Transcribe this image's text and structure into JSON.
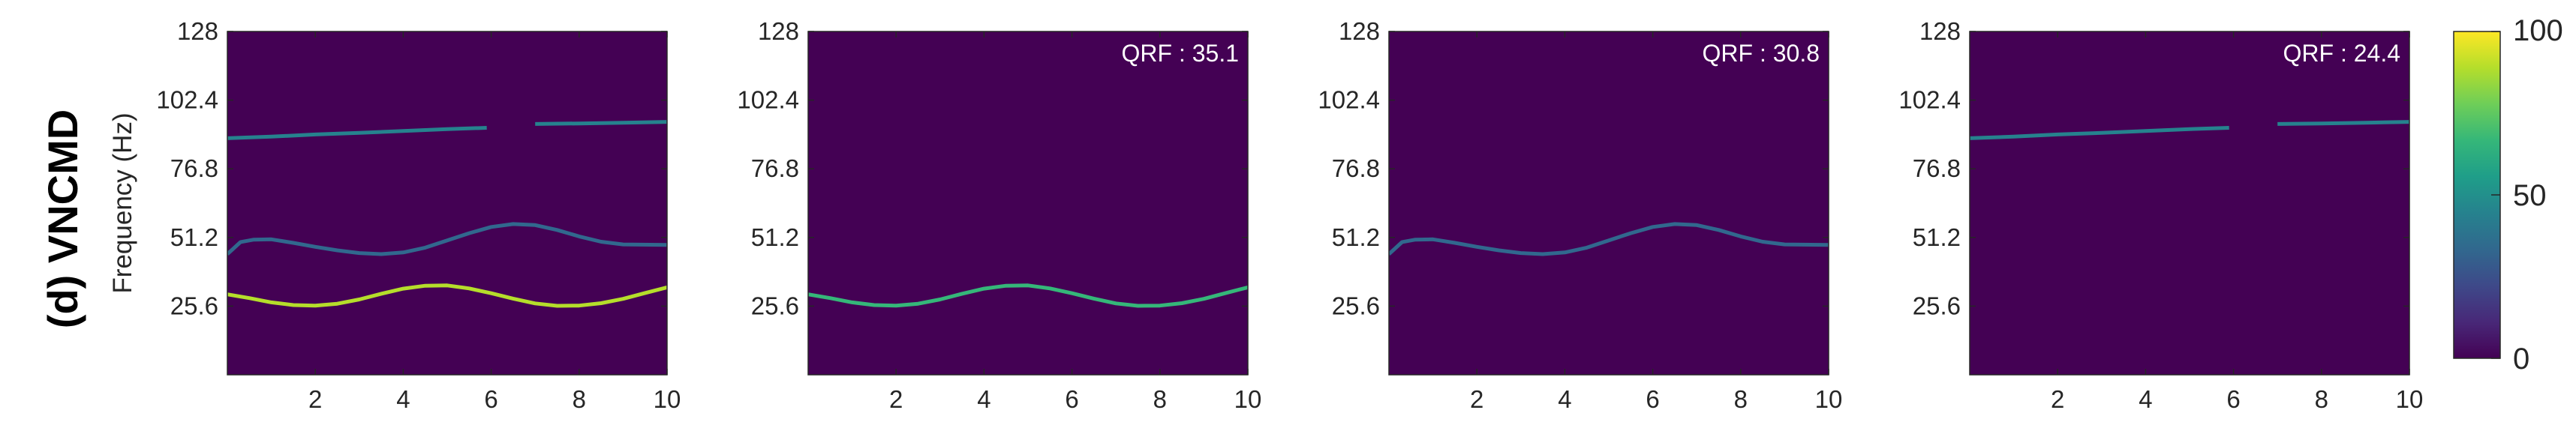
{
  "figure": {
    "row_label": "(d) VNCMD",
    "ylabel": "Frequency (Hz)"
  },
  "colorbar": {
    "range": [
      0,
      100
    ],
    "ticks": [
      "100",
      "50",
      "0"
    ],
    "colormap": [
      "#440154",
      "#482878",
      "#3e4989",
      "#31688e",
      "#26828e",
      "#1f9e89",
      "#35b779",
      "#6ece58",
      "#b5de2b",
      "#fde725"
    ]
  },
  "chart_data": [
    {
      "type": "heatmap",
      "title": "",
      "annotation": "",
      "xlabel": "",
      "ylabel": "Frequency (Hz)",
      "xlim": [
        0,
        10
      ],
      "ylim": [
        0,
        128
      ],
      "xticks": [
        "2",
        "4",
        "6",
        "8",
        "10"
      ],
      "yticks": [
        "25.6",
        "51.2",
        "76.8",
        "102.4",
        "128"
      ],
      "background": "#440154",
      "series": [
        {
          "points": [
            [
              0,
              88.2
            ],
            [
              1,
              88.8
            ],
            [
              2,
              89.6
            ],
            [
              3,
              90.2
            ],
            [
              4,
              90.9
            ],
            [
              5,
              91.6
            ],
            [
              5.9,
              92.1
            ]
          ],
          "color": "#26828e"
        },
        {
          "points": [
            [
              7.0,
              93.5
            ],
            [
              8,
              93.7
            ],
            [
              9,
              94.0
            ],
            [
              10,
              94.3
            ]
          ],
          "color": "#26828e"
        },
        {
          "points": [
            [
              0,
              45
            ],
            [
              0.3,
              49.5
            ],
            [
              0.6,
              50.4
            ],
            [
              1,
              50.5
            ],
            [
              1.5,
              49.2
            ],
            [
              2,
              47.7
            ],
            [
              2.5,
              46.4
            ],
            [
              3,
              45.4
            ],
            [
              3.5,
              45.0
            ],
            [
              4,
              45.6
            ],
            [
              4.5,
              47.4
            ],
            [
              5,
              50.1
            ],
            [
              5.5,
              52.8
            ],
            [
              6,
              55.1
            ],
            [
              6.5,
              56.2
            ],
            [
              7,
              55.8
            ],
            [
              7.5,
              54.0
            ],
            [
              8,
              51.6
            ],
            [
              8.5,
              49.6
            ],
            [
              9,
              48.6
            ],
            [
              10,
              48.4
            ]
          ],
          "color": "#31688e"
        },
        {
          "points": [
            [
              0,
              30.0
            ],
            [
              0.5,
              28.6
            ],
            [
              1,
              27.0
            ],
            [
              1.5,
              26.0
            ],
            [
              2,
              25.8
            ],
            [
              2.5,
              26.5
            ],
            [
              3,
              28.1
            ],
            [
              3.5,
              30.2
            ],
            [
              4,
              32.1
            ],
            [
              4.5,
              33.2
            ],
            [
              5,
              33.3
            ],
            [
              5.5,
              32.2
            ],
            [
              6,
              30.4
            ],
            [
              6.5,
              28.4
            ],
            [
              7,
              26.6
            ],
            [
              7.5,
              25.7
            ],
            [
              8,
              25.8
            ],
            [
              8.5,
              26.7
            ],
            [
              9,
              28.3
            ],
            [
              9.5,
              30.5
            ],
            [
              10,
              32.6
            ]
          ],
          "color": "#b5de2b"
        }
      ]
    },
    {
      "type": "heatmap",
      "title": "",
      "annotation": "QRF : 35.1",
      "xlabel": "",
      "ylabel": "",
      "xlim": [
        0,
        10
      ],
      "ylim": [
        0,
        128
      ],
      "xticks": [
        "2",
        "4",
        "6",
        "8",
        "10"
      ],
      "yticks": [
        "25.6",
        "51.2",
        "76.8",
        "102.4",
        "128"
      ],
      "background": "#440154",
      "series": [
        {
          "points": [
            [
              0,
              30.0
            ],
            [
              0.5,
              28.6
            ],
            [
              1,
              27.0
            ],
            [
              1.5,
              26.0
            ],
            [
              2,
              25.8
            ],
            [
              2.5,
              26.5
            ],
            [
              3,
              28.1
            ],
            [
              3.5,
              30.2
            ],
            [
              4,
              32.1
            ],
            [
              4.5,
              33.2
            ],
            [
              5,
              33.3
            ],
            [
              5.5,
              32.2
            ],
            [
              6,
              30.4
            ],
            [
              6.5,
              28.4
            ],
            [
              7,
              26.6
            ],
            [
              7.5,
              25.7
            ],
            [
              8,
              25.8
            ],
            [
              8.5,
              26.7
            ],
            [
              9,
              28.3
            ],
            [
              9.5,
              30.5
            ],
            [
              10,
              32.6
            ]
          ],
          "color": "#35b779"
        }
      ]
    },
    {
      "type": "heatmap",
      "title": "",
      "annotation": "QRF : 30.8",
      "xlabel": "",
      "ylabel": "",
      "xlim": [
        0,
        10
      ],
      "ylim": [
        0,
        128
      ],
      "xticks": [
        "2",
        "4",
        "6",
        "8",
        "10"
      ],
      "yticks": [
        "25.6",
        "51.2",
        "76.8",
        "102.4",
        "128"
      ],
      "background": "#440154",
      "series": [
        {
          "points": [
            [
              0,
              45
            ],
            [
              0.3,
              49.5
            ],
            [
              0.6,
              50.4
            ],
            [
              1,
              50.5
            ],
            [
              1.5,
              49.2
            ],
            [
              2,
              47.7
            ],
            [
              2.5,
              46.4
            ],
            [
              3,
              45.4
            ],
            [
              3.5,
              45.0
            ],
            [
              4,
              45.6
            ],
            [
              4.5,
              47.4
            ],
            [
              5,
              50.1
            ],
            [
              5.5,
              52.8
            ],
            [
              6,
              55.1
            ],
            [
              6.5,
              56.2
            ],
            [
              7,
              55.8
            ],
            [
              7.5,
              54.0
            ],
            [
              8,
              51.6
            ],
            [
              8.5,
              49.6
            ],
            [
              9,
              48.6
            ],
            [
              10,
              48.4
            ]
          ],
          "color": "#31688e"
        }
      ]
    },
    {
      "type": "heatmap",
      "title": "",
      "annotation": "QRF : 24.4",
      "xlabel": "",
      "ylabel": "",
      "xlim": [
        0,
        10
      ],
      "ylim": [
        0,
        128
      ],
      "xticks": [
        "2",
        "4",
        "6",
        "8",
        "10"
      ],
      "yticks": [
        "25.6",
        "51.2",
        "76.8",
        "102.4",
        "128"
      ],
      "background": "#440154",
      "series": [
        {
          "points": [
            [
              0,
              88.2
            ],
            [
              1,
              88.8
            ],
            [
              2,
              89.6
            ],
            [
              3,
              90.2
            ],
            [
              4,
              90.9
            ],
            [
              5,
              91.6
            ],
            [
              5.9,
              92.1
            ]
          ],
          "color": "#26828e"
        },
        {
          "points": [
            [
              7.0,
              93.5
            ],
            [
              8,
              93.7
            ],
            [
              9,
              94.0
            ],
            [
              10,
              94.3
            ]
          ],
          "color": "#26828e"
        }
      ]
    }
  ]
}
